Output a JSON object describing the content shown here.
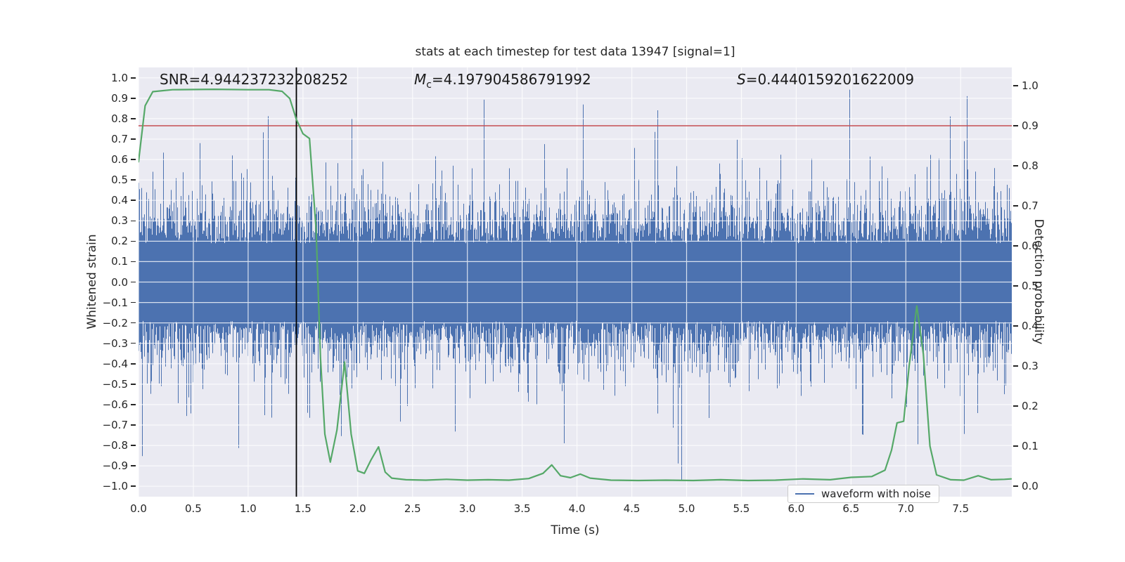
{
  "figure": {
    "title": "stats at each timestep for test data 13947 [signal=1]",
    "xlabel": "Time (s)",
    "ylabel_left": "Whitened strain",
    "ylabel_right": "Detection probability",
    "annotations": {
      "snr": "SNR=4.944237232208252",
      "mc_symbol": "M",
      "mc_subscript": "c",
      "mc_value": "=4.197904586791992",
      "s_symbol": "S",
      "s_value": "=0.4440159201622009"
    },
    "legend": {
      "label": "waveform with noise"
    }
  },
  "colors": {
    "plot_background": "#eaeaf2",
    "grid": "#ffffff",
    "waveform": "#4c72b0",
    "probability": "#55a868",
    "threshold": "#c44e52",
    "marker": "#000000",
    "text": "#262626"
  },
  "chart_data": {
    "type": "line",
    "title": "stats at each timestep for test data 13947 [signal=1]",
    "xlabel": "Time (s)",
    "ylabel_left": "Whitened strain",
    "ylabel_right": "Detection probability",
    "grid": true,
    "xlim": [
      0,
      7.96
    ],
    "ylim_left": [
      -1.05,
      1.05
    ],
    "ylim_right": [
      -0.0263,
      1.046
    ],
    "x_tick_labels": [
      "0.0",
      "0.5",
      "1.0",
      "1.5",
      "2.0",
      "2.5",
      "3.0",
      "3.5",
      "4.0",
      "4.5",
      "5.0",
      "5.5",
      "6.0",
      "6.5",
      "7.0",
      "7.5"
    ],
    "x_ticks": [
      0,
      0.5,
      1,
      1.5,
      2,
      2.5,
      3,
      3.5,
      4,
      4.5,
      5,
      5.5,
      6,
      6.5,
      7,
      7.5
    ],
    "y_tick_labels_left": [
      "1.0",
      "0.9",
      "0.8",
      "0.7",
      "0.6",
      "0.5",
      "0.4",
      "0.3",
      "0.2",
      "0.1",
      "0.0",
      "−0.1",
      "−0.2",
      "−0.3",
      "−0.4",
      "−0.5",
      "−0.6",
      "−0.7",
      "−0.8",
      "−0.9",
      "−1.0"
    ],
    "y_ticks_left": [
      1.0,
      0.9,
      0.8,
      0.7,
      0.6,
      0.5,
      0.4,
      0.3,
      0.2,
      0.1,
      0.0,
      -0.1,
      -0.2,
      -0.3,
      -0.4,
      -0.5,
      -0.6,
      -0.7,
      -0.8,
      -0.9,
      -1.0
    ],
    "y_tick_labels_right": [
      "1.0",
      "0.9",
      "0.8",
      "0.7",
      "0.6",
      "0.5",
      "0.4",
      "0.3",
      "0.2",
      "0.1",
      "0.0"
    ],
    "y_ticks_right": [
      1.0,
      0.9,
      0.8,
      0.7,
      0.6,
      0.5,
      0.4,
      0.3,
      0.2,
      0.1,
      0.0
    ],
    "legend": {
      "label": "waveform with noise",
      "loc": "lower right"
    },
    "series": [
      {
        "name": "waveform with noise",
        "kind": "noise-waveform",
        "axis": "left",
        "color": "#4c72b0",
        "description": "dense zero-mean whitened-strain noise; solid band about ±0.2 with spikes up to ±0.95",
        "n_columns": 1242,
        "band": 0.19,
        "spread": 0.13,
        "tail_prob": 0.09,
        "tail_base": 0.24,
        "tail_spread": 0.3,
        "clip": 0.97,
        "seed": 13947
      },
      {
        "name": "detection probability",
        "kind": "line",
        "axis": "right",
        "color": "#55a868",
        "points": [
          [
            0,
            0.81
          ],
          [
            0.06,
            0.95
          ],
          [
            0.13,
            0.985
          ],
          [
            0.31,
            0.99
          ],
          [
            0.69,
            0.991
          ],
          [
            1.0,
            0.99
          ],
          [
            1.19,
            0.99
          ],
          [
            1.31,
            0.986
          ],
          [
            1.38,
            0.968
          ],
          [
            1.44,
            0.916
          ],
          [
            1.5,
            0.88
          ],
          [
            1.56,
            0.868
          ],
          [
            1.62,
            0.64
          ],
          [
            1.66,
            0.32
          ],
          [
            1.7,
            0.13
          ],
          [
            1.75,
            0.06
          ],
          [
            1.81,
            0.14
          ],
          [
            1.88,
            0.31
          ],
          [
            1.94,
            0.13
          ],
          [
            2.0,
            0.038
          ],
          [
            2.06,
            0.032
          ],
          [
            2.12,
            0.065
          ],
          [
            2.19,
            0.098
          ],
          [
            2.25,
            0.035
          ],
          [
            2.31,
            0.02
          ],
          [
            2.44,
            0.016
          ],
          [
            2.62,
            0.015
          ],
          [
            2.81,
            0.017
          ],
          [
            3.0,
            0.015
          ],
          [
            3.19,
            0.016
          ],
          [
            3.38,
            0.015
          ],
          [
            3.56,
            0.019
          ],
          [
            3.69,
            0.032
          ],
          [
            3.77,
            0.053
          ],
          [
            3.85,
            0.026
          ],
          [
            3.94,
            0.021
          ],
          [
            4.03,
            0.03
          ],
          [
            4.12,
            0.02
          ],
          [
            4.31,
            0.015
          ],
          [
            4.56,
            0.014
          ],
          [
            4.81,
            0.015
          ],
          [
            5.06,
            0.014
          ],
          [
            5.31,
            0.016
          ],
          [
            5.56,
            0.014
          ],
          [
            5.81,
            0.015
          ],
          [
            6.06,
            0.018
          ],
          [
            6.31,
            0.016
          ],
          [
            6.5,
            0.022
          ],
          [
            6.69,
            0.024
          ],
          [
            6.81,
            0.04
          ],
          [
            6.87,
            0.09
          ],
          [
            6.92,
            0.158
          ],
          [
            6.98,
            0.162
          ],
          [
            7.03,
            0.3
          ],
          [
            7.1,
            0.45
          ],
          [
            7.16,
            0.33
          ],
          [
            7.22,
            0.1
          ],
          [
            7.28,
            0.028
          ],
          [
            7.41,
            0.016
          ],
          [
            7.53,
            0.015
          ],
          [
            7.66,
            0.026
          ],
          [
            7.78,
            0.016
          ],
          [
            7.9,
            0.017
          ],
          [
            7.96,
            0.018
          ]
        ]
      },
      {
        "name": "detection threshold",
        "kind": "hline",
        "axis": "right",
        "color": "#c44e52",
        "y": 0.9
      },
      {
        "name": "event time marker",
        "kind": "vline",
        "color": "#000000",
        "x": 1.44
      }
    ],
    "annotations": [
      {
        "text": "SNR=4.944237232208252"
      },
      {
        "text": "Mc=4.197904586791992"
      },
      {
        "text": "S=0.4440159201622009"
      }
    ]
  }
}
